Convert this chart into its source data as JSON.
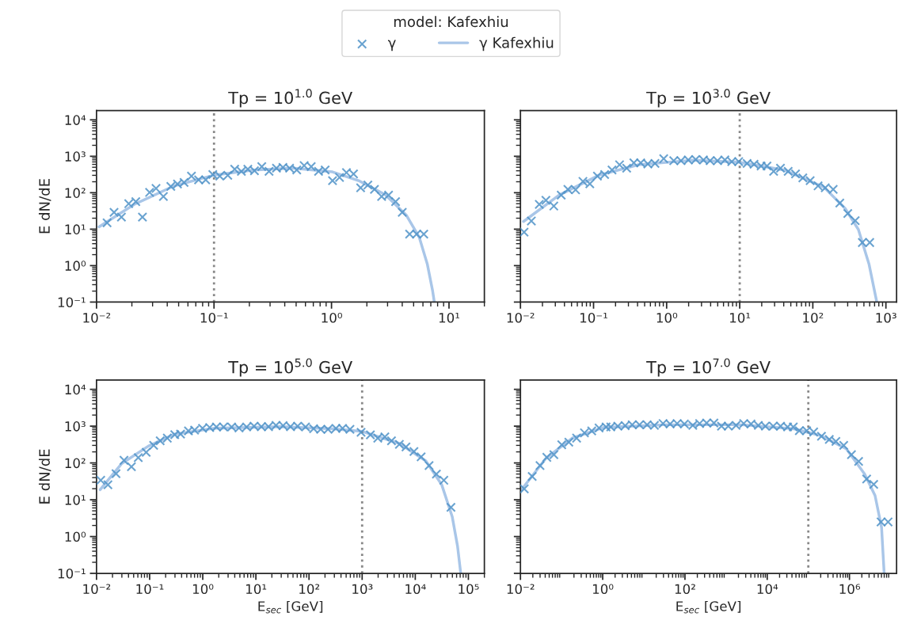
{
  "chart_data": [
    {
      "type": "line",
      "title": "Tp = 10$^{1.0}$ GeV",
      "ylabel": "E dN/dE",
      "legend_title": "model: Kafexhiu",
      "legend": "top",
      "log": "xy",
      "xlim": [
        0.01,
        20
      ],
      "xticks": [
        {
          "value": 0.01,
          "label": "10⁻²"
        },
        {
          "value": 0.1,
          "label": "10⁻¹"
        },
        {
          "value": 1,
          "label": "10⁰"
        },
        {
          "value": 10,
          "label": "10¹"
        }
      ],
      "ylim": [
        0.1,
        18000
      ],
      "yticks": [
        {
          "value": 0.1,
          "label": "10⁻¹"
        },
        {
          "value": 1,
          "label": "10⁰"
        },
        {
          "value": 10,
          "label": "10¹"
        },
        {
          "value": 100,
          "label": "10²"
        },
        {
          "value": 1000,
          "label": "10³"
        },
        {
          "value": 10000,
          "label": "10⁴"
        }
      ],
      "ref_lines": [
        {
          "axis": "x",
          "value": 0.1,
          "color": "#888888",
          "line_style": "dotted"
        }
      ],
      "series": [
        {
          "name": "γ",
          "type": "scatter",
          "marker": "cross",
          "color": "#5093c8",
          "x": [
            0.0123,
            0.0141,
            0.0163,
            0.0188,
            0.0216,
            0.0246,
            0.0283,
            0.0321,
            0.0371,
            0.0429,
            0.0489,
            0.0556,
            0.0643,
            0.0739,
            0.085,
            0.0977,
            0.112,
            0.131,
            0.15,
            0.171,
            0.194,
            0.221,
            0.255,
            0.294,
            0.34,
            0.386,
            0.44,
            0.506,
            0.585,
            0.672,
            0.776,
            0.883,
            1.02,
            1.17,
            1.34,
            1.54,
            1.77,
            2.04,
            2.32,
            2.67,
            3.06,
            3.51,
            4.0,
            4.62,
            5.3,
            6.1
          ],
          "values": [
            14.9,
            29,
            21.5,
            50,
            57,
            21.5,
            102,
            131,
            79,
            149,
            173,
            192,
            286,
            226,
            226,
            316,
            286,
            301,
            441,
            386,
            441,
            399,
            521,
            386,
            472,
            497,
            472,
            420,
            557,
            521,
            386,
            420,
            215,
            263,
            356,
            327,
            137,
            162,
            124,
            79,
            86,
            57,
            29,
            7.3,
            7.3,
            7.3
          ]
        },
        {
          "name": "γ Kafexhiu",
          "marker": "none",
          "color": "#a9c6e8",
          "x": [
            0.0105,
            0.021,
            0.0457,
            0.099,
            0.215,
            0.468,
            1.02,
            1.7,
            2.86,
            4.32,
            5.58,
            6.53,
            7.24,
            7.5
          ],
          "values": [
            11.6,
            48,
            154,
            301,
            420,
            472,
            373,
            215,
            89,
            24.6,
            6.0,
            1.12,
            0.21,
            0.1
          ]
        }
      ]
    },
    {
      "type": "line",
      "title": "Tp = 10$^{3.0}$ GeV",
      "log": "xy",
      "tick_labels": "x",
      "xlim": [
        0.01,
        1400
      ],
      "xticks": [
        {
          "value": 0.01,
          "label": "10⁻²"
        },
        {
          "value": 0.1,
          "label": "10⁻¹"
        },
        {
          "value": 1,
          "label": "10⁰"
        },
        {
          "value": 10,
          "label": "10¹"
        },
        {
          "value": 100,
          "label": "10²"
        },
        {
          "value": 1000,
          "label": "10³"
        }
      ],
      "ylim": [
        0.1,
        18000
      ],
      "yticks": [
        {
          "value": 0.1,
          "label": null
        },
        {
          "value": 1,
          "label": null
        },
        {
          "value": 10,
          "label": null
        },
        {
          "value": 100,
          "label": null
        },
        {
          "value": 1000,
          "label": null
        },
        {
          "value": 10000,
          "label": null
        }
      ],
      "ref_lines": [
        {
          "axis": "x",
          "value": 10,
          "color": "#888888",
          "line_style": "dotted"
        }
      ],
      "series": [
        {
          "type": "scatter",
          "marker": "cross",
          "color": "#5093c8",
          "x": [
            0.0112,
            0.0141,
            0.0181,
            0.0223,
            0.0286,
            0.0361,
            0.0446,
            0.0568,
            0.0716,
            0.0889,
            0.113,
            0.142,
            0.179,
            0.227,
            0.284,
            0.356,
            0.442,
            0.553,
            0.693,
            0.912,
            1.25,
            1.57,
            1.98,
            2.5,
            3.19,
            3.93,
            4.96,
            6.27,
            7.78,
            9.68,
            12.6,
            15.7,
            19.6,
            23.6,
            29.1,
            36.1,
            46,
            58,
            73,
            92,
            118,
            148,
            190,
            234,
            301,
            380,
            476,
            601
          ],
          "values": [
            8.3,
            16.8,
            48,
            62,
            43,
            86,
            124,
            120,
            205,
            176,
            286,
            316,
            420,
            586,
            472,
            659,
            659,
            617,
            637,
            861,
            754,
            754,
            792,
            819,
            792,
            754,
            754,
            792,
            716,
            716,
            637,
            607,
            540,
            540,
            386,
            472,
            386,
            327,
            255,
            215,
            154,
            137,
            124,
            52,
            26.8,
            17.1,
            4.3,
            4.3
          ]
        },
        {
          "marker": "none",
          "color": "#a9c6e8",
          "x": [
            0.011,
            0.0338,
            0.118,
            0.413,
            2.19,
            9.68,
            40.6,
            142,
            277,
            420,
            586,
            750
          ],
          "values": [
            16.2,
            86,
            301,
            586,
            778,
            693,
            420,
            142,
            37,
            9.8,
            1.12,
            0.1
          ]
        }
      ]
    },
    {
      "type": "line",
      "title": "Tp = 10$^{5.0}$ GeV",
      "xlabel": "E$_{sec}$ [GeV]",
      "ylabel": "E dN/dE",
      "log": "xy",
      "xlim": [
        0.01,
        200000
      ],
      "xticks": [
        {
          "value": 0.01,
          "label": "10⁻²"
        },
        {
          "value": 0.1,
          "label": "10⁻¹"
        },
        {
          "value": 1,
          "label": "10⁰"
        },
        {
          "value": 10,
          "label": "10¹"
        },
        {
          "value": 100,
          "label": "10²"
        },
        {
          "value": 1000,
          "label": "10³"
        },
        {
          "value": 10000,
          "label": "10⁴"
        },
        {
          "value": 100000,
          "label": "10⁵"
        }
      ],
      "ylim": [
        0.1,
        18000
      ],
      "yticks": [
        {
          "value": 0.1,
          "label": "10⁻¹"
        },
        {
          "value": 1,
          "label": "10⁰"
        },
        {
          "value": 10,
          "label": "10¹"
        },
        {
          "value": 100,
          "label": "10²"
        },
        {
          "value": 1000,
          "label": "10³"
        },
        {
          "value": 10000,
          "label": "10⁴"
        }
      ],
      "ref_lines": [
        {
          "axis": "x",
          "value": 1000,
          "color": "#888888",
          "line_style": "dotted"
        }
      ],
      "series": [
        {
          "type": "scatter",
          "marker": "cross",
          "color": "#5093c8",
          "x": [
            0.012,
            0.0164,
            0.0233,
            0.0329,
            0.0454,
            0.0611,
            0.0861,
            0.119,
            0.158,
            0.215,
            0.297,
            0.382,
            0.538,
            0.701,
            0.989,
            1.35,
            1.81,
            2.47,
            3.49,
            4.81,
            6.7,
            9.23,
            12.7,
            17.3,
            23.9,
            32.5,
            44.8,
            61,
            86,
            122,
            166,
            228,
            321,
            428,
            590,
            955,
            1430,
            1970,
            2680,
            3570,
            5030,
            6690,
            9440,
            12900,
            18200,
            25000,
            34500,
            47000
          ],
          "values": [
            33.8,
            25.5,
            51,
            118,
            79,
            140,
            195,
            301,
            399,
            472,
            586,
            607,
            741,
            778,
            875,
            920,
            951,
            951,
            951,
            889,
            951,
            1000,
            968,
            968,
            1050,
            1030,
            968,
            1000,
            951,
            847,
            819,
            819,
            875,
            875,
            819,
            681,
            577,
            472,
            513,
            399,
            321,
            272,
            205,
            147,
            85,
            50,
            33.8,
            6.2
          ]
        },
        {
          "marker": "none",
          "color": "#a9c6e8",
          "x": [
            0.0117,
            0.03,
            0.0944,
            0.297,
            1.66,
            29,
            287,
            1010,
            5030,
            15800,
            31500,
            49800,
            62500,
            71800
          ],
          "values": [
            18.8,
            97,
            286,
            607,
            875,
            968,
            847,
            716,
            338,
            114,
            25.5,
            3.4,
            0.55,
            0.1
          ]
        }
      ]
    },
    {
      "type": "line",
      "title": "Tp = 10$^{7.0}$ GeV",
      "xlabel": "E$_{sec}$ [GeV]",
      "log": "xy",
      "tick_labels": "x",
      "xlim": [
        0.01,
        14000000
      ],
      "xticks": [
        {
          "value": 0.01,
          "label": "10⁻²"
        },
        {
          "value": 1,
          "label": "10⁰"
        },
        {
          "value": 100,
          "label": "10²"
        },
        {
          "value": 10000,
          "label": "10⁴"
        },
        {
          "value": 1000000,
          "label": "10⁶"
        }
      ],
      "ylim": [
        0.1,
        18000
      ],
      "yticks": [
        {
          "value": 0.1,
          "label": null
        },
        {
          "value": 1,
          "label": null
        },
        {
          "value": 10,
          "label": null
        },
        {
          "value": 100,
          "label": null
        },
        {
          "value": 1000,
          "label": null
        },
        {
          "value": 10000,
          "label": null
        }
      ],
      "ref_lines": [
        {
          "axis": "x",
          "value": 100000,
          "color": "#888888",
          "line_style": "dotted"
        }
      ],
      "series": [
        {
          "type": "scatter",
          "marker": "cross",
          "color": "#5093c8",
          "x": [
            0.0124,
            0.0193,
            0.0299,
            0.0438,
            0.065,
            0.101,
            0.15,
            0.232,
            0.36,
            0.541,
            0.815,
            1.21,
            1.57,
            2.33,
            3.52,
            5.21,
            7.85,
            12.0,
            18.1,
            29.3,
            43.5,
            64.5,
            97,
            155,
            227,
            337,
            507,
            774,
            1130,
            1750,
            2680,
            4040,
            6080,
            9030,
            14000,
            21100,
            31300,
            43100,
            60400,
            91000,
            135000,
            209000,
            324000,
            468000,
            725000,
            1120000,
            1670000,
            2620000,
            3890000,
            5860000,
            8700000
          ],
          "values": [
            19.8,
            43,
            85,
            142,
            168,
            311,
            367,
            472,
            659,
            741,
            889,
            951,
            951,
            1000,
            1030,
            1090,
            1090,
            1090,
            1050,
            1180,
            1140,
            1180,
            1140,
            1050,
            1180,
            1220,
            1220,
            1000,
            1000,
            1050,
            1180,
            1140,
            1050,
            1000,
            1000,
            1000,
            951,
            951,
            754,
            754,
            693,
            531,
            435,
            386,
            301,
            168,
            110,
            36.7,
            26.3,
            2.5,
            2.5
          ]
        },
        {
          "marker": "none",
          "color": "#a9c6e8",
          "x": [
            0.0104,
            0.0419,
            0.181,
            1.04,
            30,
            2420,
            45100,
            195000,
            840000,
            2330000,
            4190000,
            6040000,
            6980000
          ],
          "values": [
            18.2,
            135,
            472,
            920,
            1090,
            1090,
            847,
            557,
            242,
            50,
            13,
            1.76,
            0.1
          ]
        }
      ]
    }
  ]
}
